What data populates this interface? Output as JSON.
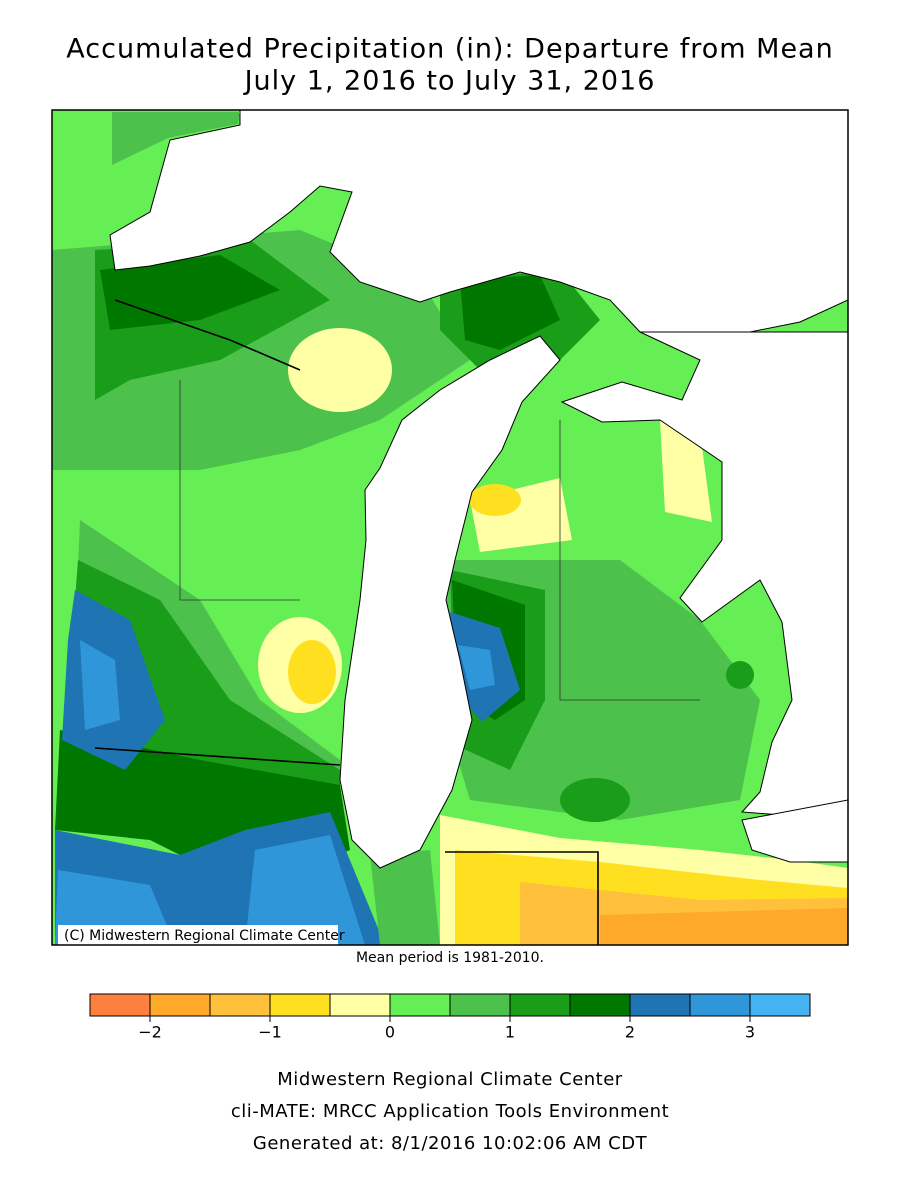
{
  "header": {
    "title": "Accumulated Precipitation (in): Departure from Mean",
    "subtitle": "July 1, 2016 to July 31, 2016"
  },
  "map": {
    "credit": "(C) Midwestern Regional Climate Center",
    "note": "Mean period is 1981-2010."
  },
  "legend": {
    "colors": [
      "#ff7f3f",
      "#ffa92a",
      "#ffc03c",
      "#ffe020",
      "#ffffa6",
      "#66ee55",
      "#4cc24c",
      "#1a9e1a",
      "#007800",
      "#1f74b4",
      "#2f97d9",
      "#45b3f2"
    ],
    "range": [
      -2.5,
      3.5
    ],
    "ticks": [
      {
        "value": -2,
        "label": "−2"
      },
      {
        "value": -1,
        "label": "−1"
      },
      0,
      1,
      2,
      3
    ]
  },
  "footer": {
    "lines": [
      "Midwestern Regional Climate Center",
      "cli-MATE: MRCC Application Tools Environment",
      "Generated at: 8/1/2016 10:02:06 AM CDT"
    ]
  }
}
